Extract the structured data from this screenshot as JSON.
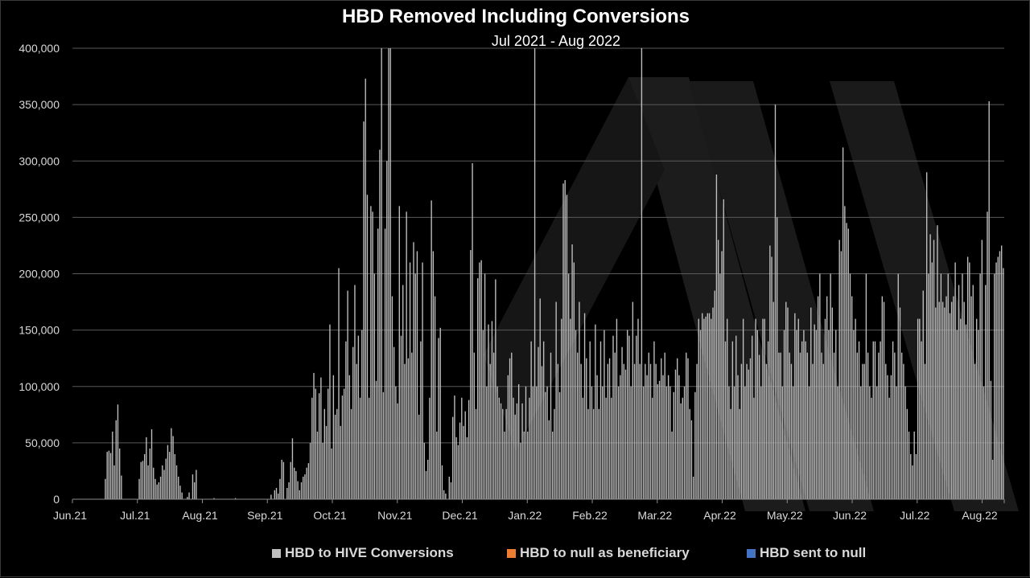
{
  "chart_data": {
    "type": "bar",
    "title": "HBD Removed Including Conversions",
    "subtitle": "Jul 2021 - Aug 2022",
    "xlabel": "",
    "ylabel": "",
    "ylim": [
      0,
      400000
    ],
    "yticks": [
      "0",
      "50,000",
      "100,000",
      "150,000",
      "200,000",
      "250,000",
      "300,000",
      "350,000",
      "400,000"
    ],
    "xticks": [
      "Jun.21",
      "Jul.21",
      "Aug.21",
      "Sep.21",
      "Oct.21",
      "Nov.21",
      "Dec.21",
      "Jan.22",
      "Feb.22",
      "Mar.22",
      "Apr.22",
      "May.22",
      "Jun.22",
      "Jul.22",
      "Aug.22"
    ],
    "grid": true,
    "legend_position": "bottom",
    "colors": {
      "background": "#000000",
      "grid": "#595959",
      "conversions": "#bfbfbf",
      "beneficiary": "#ed7d31",
      "null": "#4472c4",
      "watermark": "#1a1a1a"
    },
    "series": [
      {
        "name": "HBD to HIVE Conversions",
        "color": "#bfbfbf",
        "values": [
          0,
          0,
          0,
          0,
          0,
          0,
          0,
          0,
          0,
          0,
          0,
          0,
          0,
          0,
          0,
          0,
          0,
          0,
          18000,
          42000,
          43000,
          41000,
          60000,
          30000,
          70000,
          84000,
          45000,
          21000,
          0,
          0,
          0,
          0,
          0,
          0,
          0,
          0,
          0,
          18000,
          33000,
          34000,
          40000,
          55000,
          30000,
          45000,
          62000,
          28000,
          18000,
          13000,
          15000,
          20000,
          30000,
          26000,
          36000,
          48000,
          42000,
          63000,
          56000,
          40000,
          30000,
          20000,
          12000,
          6000,
          0,
          0,
          2000,
          6000,
          0,
          22000,
          15000,
          26000,
          0,
          0,
          0,
          0,
          0,
          0,
          0,
          0,
          0,
          1000,
          0,
          0,
          0,
          0,
          0,
          0,
          0,
          0,
          0,
          0,
          0,
          1000,
          0,
          0,
          0,
          0,
          0,
          0,
          0,
          0,
          0,
          0,
          0,
          0,
          0,
          0,
          0,
          0,
          0,
          0,
          0,
          4000,
          0,
          8000,
          10000,
          5000,
          18000,
          35000,
          33000,
          0,
          10000,
          15000,
          33000,
          54000,
          28000,
          25000,
          16000,
          8000,
          15000,
          20000,
          22000,
          28000,
          32000,
          50000,
          90000,
          112000,
          98000,
          60000,
          94000,
          108000,
          50000,
          80000,
          65000,
          98000,
          155000,
          45000,
          110000,
          75000,
          80000,
          205000,
          65000,
          92000,
          98000,
          140000,
          185000,
          110000,
          80000,
          135000,
          190000,
          120000,
          145000,
          90000,
          150000,
          335000,
          373000,
          270000,
          90000,
          260000,
          255000,
          200000,
          105000,
          240000,
          310000,
          400000,
          95000,
          240000,
          300000,
          400000,
          400000,
          180000,
          135000,
          100000,
          85000,
          260000,
          145000,
          190000,
          120000,
          255000,
          125000,
          210000,
          130000,
          228000,
          200000,
          220000,
          75000,
          140000,
          210000,
          50000,
          25000,
          35000,
          90000,
          265000,
          220000,
          180000,
          60000,
          143000,
          152000,
          30000,
          8000,
          5000,
          0,
          20000,
          15000,
          73000,
          92000,
          55000,
          48000,
          68000,
          90000,
          65000,
          78000,
          55000,
          88000,
          221000,
          298000,
          130000,
          80000,
          196000,
          210000,
          212000,
          150000,
          200000,
          100000,
          155000,
          120000,
          158000,
          130000,
          195000,
          100000,
          90000,
          85000,
          80000,
          60000,
          80000,
          110000,
          125000,
          130000,
          90000,
          75000,
          85000,
          102000,
          50000,
          85000,
          60000,
          100000,
          60000,
          90000,
          140000,
          100000,
          400000,
          100000,
          135000,
          178000,
          118000,
          140000,
          95000,
          100000,
          70000,
          130000,
          60000,
          80000,
          175000,
          120000,
          95000,
          160000,
          280000,
          283000,
          270000,
          200000,
          160000,
          226000,
          210000,
          150000,
          130000,
          175000,
          120000,
          90000,
          165000,
          125000,
          80000,
          140000,
          100000,
          80000,
          155000,
          110000,
          80000,
          140000,
          100000,
          150000,
          90000,
          120000,
          125000,
          90000,
          145000,
          130000,
          160000,
          100000,
          110000,
          135000,
          120000,
          115000,
          150000,
          145000,
          100000,
          175000,
          120000,
          145000,
          160000,
          120000,
          400000,
          100000,
          120000,
          110000,
          130000,
          120000,
          90000,
          140000,
          120000,
          102000,
          105000,
          125000,
          110000,
          130000,
          100000,
          110000,
          100000,
          60000,
          95000,
          115000,
          125000,
          110000,
          85000,
          90000,
          100000,
          130000,
          125000,
          80000,
          70000,
          20000,
          95000,
          120000,
          160000,
          150000,
          165000,
          160000,
          162000,
          165000,
          165000,
          160000,
          170000,
          185000,
          288000,
          230000,
          200000,
          220000,
          266000,
          140000,
          160000,
          100000,
          80000,
          140000,
          100000,
          145000,
          110000,
          80000,
          120000,
          160000,
          100000,
          120000,
          115000,
          125000,
          145000,
          90000,
          160000,
          150000,
          128000,
          100000,
          160000,
          160000,
          120000,
          140000,
          225000,
          215000,
          175000,
          350000,
          250000,
          130000,
          130000,
          100000,
          150000,
          175000,
          170000,
          130000,
          120000,
          100000,
          165000,
          150000,
          160000,
          130000,
          140000,
          150000,
          140000,
          130000,
          100000,
          170000,
          120000,
          155000,
          150000,
          180000,
          200000,
          130000,
          120000,
          160000,
          180000,
          150000,
          200000,
          170000,
          130000,
          150000,
          100000,
          230000,
          220000,
          312000,
          260000,
          245000,
          240000,
          200000,
          180000,
          150000,
          160000,
          130000,
          140000,
          100000,
          120000,
          120000,
          200000,
          130000,
          100000,
          90000,
          140000,
          140000,
          100000,
          130000,
          140000,
          180000,
          175000,
          120000,
          110000,
          90000,
          110000,
          140000,
          130000,
          100000,
          200000,
          170000,
          130000,
          120000,
          100000,
          80000,
          60000,
          40000,
          30000,
          60000,
          40000,
          160000,
          160000,
          140000,
          185000,
          120000,
          290000,
          200000,
          235000,
          210000,
          230000,
          170000,
          243000,
          175000,
          200000,
          175000,
          170000,
          180000,
          200000,
          165000,
          175000,
          180000,
          210000,
          150000,
          190000,
          160000,
          200000,
          175000,
          155000,
          215000,
          210000,
          180000,
          190000,
          120000,
          160000,
          150000,
          200000,
          230000,
          100000,
          190000,
          255000,
          353000,
          105000,
          35000,
          200000,
          210000,
          215000,
          220000,
          225000,
          205000
        ]
      },
      {
        "name": "HBD to null as beneficiary",
        "color": "#ed7d31",
        "values": []
      },
      {
        "name": "HBD sent to null",
        "color": "#4472c4",
        "values": []
      }
    ]
  }
}
